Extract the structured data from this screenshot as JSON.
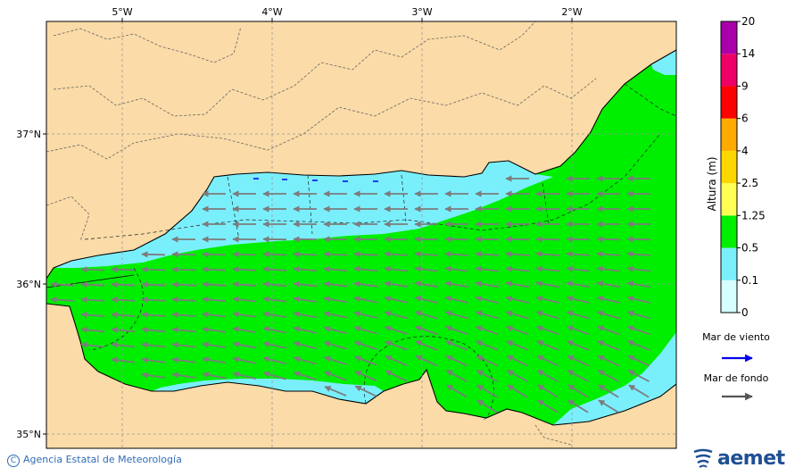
{
  "map": {
    "lon_labels": [
      "5°W",
      "4°W",
      "3°W",
      "2°W"
    ],
    "lat_labels": [
      "37°N",
      "36°N",
      "35°N"
    ],
    "lon_values": [
      -5,
      -4,
      -3,
      -2
    ],
    "lat_values": [
      37,
      36,
      35
    ],
    "land_color": "#fbdba7",
    "wave_arrow_color": "#7c7c7c"
  },
  "legend": {
    "title": "Altura (m)",
    "levels": [
      "0",
      "0.1",
      "0.5",
      "1.25",
      "2.5",
      "4",
      "6",
      "9",
      "14",
      "20"
    ],
    "colors": [
      "#d6ffff",
      "#7aeffc",
      "#00ee00",
      "#ffff55",
      "#ffd700",
      "#ffaa00",
      "#ff0000",
      "#ee0066",
      "#aa00aa"
    ],
    "wind_sea_label": "Mar de viento",
    "swell_label": "Mar de fondo",
    "wind_sea_color": "#0000ee",
    "swell_color": "#555555"
  },
  "footer": {
    "copyright_symbol": "C",
    "agency": "Agencia Estatal de Meteorología",
    "logo_text": "aemet"
  }
}
